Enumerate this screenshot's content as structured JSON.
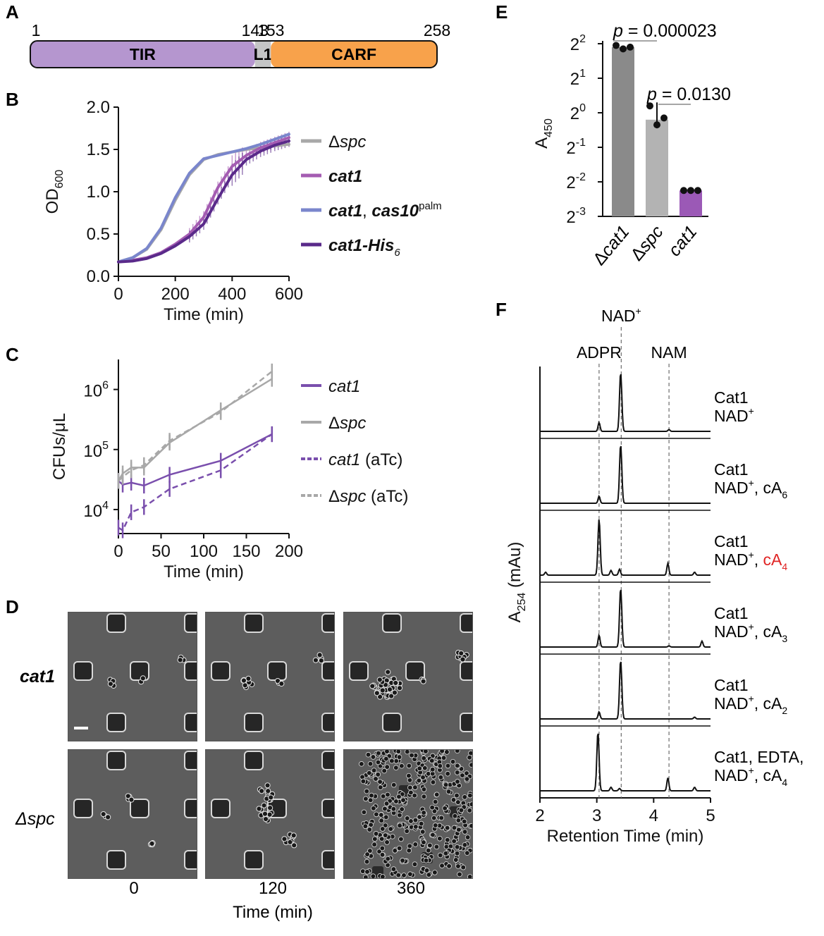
{
  "panels": {
    "A": {
      "letter": "A",
      "domains": [
        {
          "name": "TIR",
          "start": 1,
          "end": 143,
          "color": "#b596cf"
        },
        {
          "name": "L1",
          "start": 143,
          "end": 153,
          "color": "#c4c5c6"
        },
        {
          "name": "CARF",
          "start": 153,
          "end": 258,
          "color": "#f8a24b"
        }
      ],
      "positions": [
        "1",
        "143",
        "153",
        "258"
      ]
    },
    "B": {
      "letter": "B",
      "chart_data": {
        "type": "line",
        "xlabel": "Time (min)",
        "ylabel": "OD",
        "ylabel_sub": "600",
        "xlim": [
          0,
          600
        ],
        "ylim": [
          0,
          2.0
        ],
        "xticks": [
          "0",
          "200",
          "400",
          "600"
        ],
        "yticks": [
          "0.0",
          "0.5",
          "1.0",
          "1.5",
          "2.0"
        ],
        "x": [
          0,
          50,
          100,
          150,
          200,
          250,
          300,
          350,
          400,
          450,
          500,
          550,
          600
        ],
        "series": [
          {
            "name": "Δspc",
            "color": "#a8a8a8",
            "values": [
              0.17,
              0.22,
              0.32,
              0.55,
              0.9,
              1.2,
              1.38,
              1.44,
              1.47,
              1.5,
              1.52,
              1.54,
              1.56
            ]
          },
          {
            "name": "cat1",
            "color": "#a45cb2",
            "values": [
              0.17,
              0.19,
              0.22,
              0.28,
              0.38,
              0.5,
              0.7,
              1.05,
              1.3,
              1.43,
              1.52,
              1.58,
              1.64
            ]
          },
          {
            "name": "cat1, cas10palm",
            "color": "#7a86cc",
            "values": [
              0.17,
              0.22,
              0.33,
              0.57,
              0.93,
              1.22,
              1.39,
              1.43,
              1.47,
              1.51,
              1.56,
              1.62,
              1.68
            ]
          },
          {
            "name": "cat1-His6",
            "color": "#5a2a8a",
            "values": [
              0.17,
              0.18,
              0.21,
              0.27,
              0.36,
              0.47,
              0.62,
              0.92,
              1.2,
              1.38,
              1.48,
              1.55,
              1.6
            ]
          }
        ],
        "legend": [
          {
            "label": "Δspc",
            "color": "#a8a8a8"
          },
          {
            "label": "cat1",
            "color": "#a45cb2"
          },
          {
            "label": "cat1, cas10",
            "sup": "palm",
            "color": "#7a86cc"
          },
          {
            "label": "cat1-His",
            "sub": "6",
            "color": "#5a2a8a"
          }
        ]
      }
    },
    "C": {
      "letter": "C",
      "chart_data": {
        "type": "line",
        "xlabel": "Time (min)",
        "ylabel": "CFUs/μL",
        "xlim": [
          0,
          200
        ],
        "ylim_log10": [
          3.6,
          6.5
        ],
        "xticks": [
          "0",
          "50",
          "100",
          "150",
          "200"
        ],
        "yticks": [
          {
            "base": "10",
            "exp": "4"
          },
          {
            "base": "10",
            "exp": "5"
          },
          {
            "base": "10",
            "exp": "6"
          }
        ],
        "x": [
          0,
          5,
          15,
          30,
          60,
          120,
          180
        ],
        "series": [
          {
            "name": "cat1",
            "color": "#7a4fad",
            "dashed": false,
            "values": [
              30000,
              26000,
              28000,
              25000,
              38000,
              65000,
              180000
            ]
          },
          {
            "name": "Δspc",
            "color": "#a8a8a8",
            "dashed": false,
            "values": [
              30000,
              40000,
              50000,
              50000,
              130000,
              450000,
              1500000
            ]
          },
          {
            "name": "cat1 (aTc)",
            "color": "#7a4fad",
            "dashed": true,
            "values": [
              5000,
              4500,
              9000,
              11000,
              22000,
              45000,
              180000
            ]
          },
          {
            "name": "Δspc (aTc)",
            "color": "#a8a8a8",
            "dashed": true,
            "values": [
              30000,
              35000,
              45000,
              55000,
              140000,
              420000,
              2000000
            ]
          }
        ],
        "legend": [
          {
            "label": "cat1",
            "color": "#7a4fad",
            "dashed": false
          },
          {
            "label": "Δspc",
            "color": "#a8a8a8",
            "dashed": false
          },
          {
            "label": "cat1 (aTc)",
            "color": "#7a4fad",
            "dashed": true
          },
          {
            "label": "Δspc (aTc)",
            "color": "#a8a8a8",
            "dashed": true
          }
        ]
      }
    },
    "D": {
      "letter": "D",
      "rows": [
        "cat1",
        "Δspc"
      ],
      "times": [
        "0",
        "120",
        "360"
      ],
      "xlabel": "Time (min)"
    },
    "E": {
      "letter": "E",
      "chart_data": {
        "type": "bar",
        "ylabel": "A",
        "ylabel_sub": "450",
        "categories": [
          "Δcat1",
          "Δspc",
          "cat1"
        ],
        "values_log2": [
          1.9,
          -0.2,
          -2.25
        ],
        "points_log2": [
          [
            1.95,
            1.85,
            1.9
          ],
          [
            0.2,
            -0.35,
            -0.15
          ],
          [
            -2.25,
            -2.25,
            -2.25
          ]
        ],
        "colors": [
          "#8a8a8a",
          "#b3b3b3",
          "#9b59b6"
        ],
        "ylim_log2": [
          -3,
          2
        ],
        "yticks": [
          {
            "base": "2",
            "exp": "2"
          },
          {
            "base": "2",
            "exp": "1"
          },
          {
            "base": "2",
            "exp": "0"
          },
          {
            "base": "2",
            "exp": "-1"
          },
          {
            "base": "2",
            "exp": "-2"
          },
          {
            "base": "2",
            "exp": "-3"
          }
        ],
        "annotations": [
          {
            "p_label": "p",
            "p_value": " = 0.000023"
          },
          {
            "p_label": "p",
            "p_value": " = 0.0130"
          }
        ]
      }
    },
    "F": {
      "letter": "F",
      "chart_data": {
        "type": "line",
        "xlabel": "Retention Time (min)",
        "ylabel": "A",
        "ylabel_sub": "254",
        "ylabel_unit": " (mAu)",
        "xlim": [
          2,
          5
        ],
        "xticks": [
          "2",
          "3",
          "4",
          "5"
        ],
        "markers": [
          {
            "label": "ADPR",
            "x": 3.04
          },
          {
            "label": "NAD",
            "sup": "+",
            "x": 3.43
          },
          {
            "label": "NAM",
            "x": 4.27
          }
        ],
        "traces": [
          {
            "lines": [
              {
                "t": "Cat1"
              },
              {
                "t": "NAD",
                "sup": "+"
              }
            ],
            "peaks": [
              [
                3.04,
                0.15
              ],
              [
                3.42,
                1.0
              ],
              [
                4.27,
                0.03
              ]
            ]
          },
          {
            "lines": [
              {
                "t": "Cat1"
              },
              {
                "t": "NAD",
                "sup": "+",
                "after": ", cA",
                "sub": "6"
              }
            ],
            "peaks": [
              [
                3.04,
                0.12
              ],
              [
                3.42,
                1.0
              ]
            ]
          },
          {
            "lines": [
              {
                "t": "Cat1"
              },
              {
                "t": "NAD",
                "sup": "+",
                "after": ", ",
                "red": "cA",
                "redsub": "4"
              }
            ],
            "peaks": [
              [
                2.1,
                0.05
              ],
              [
                3.04,
                0.95
              ],
              [
                3.25,
                0.08
              ],
              [
                3.4,
                0.1
              ],
              [
                4.25,
                0.2
              ],
              [
                4.72,
                0.05
              ]
            ]
          },
          {
            "lines": [
              {
                "t": "Cat1"
              },
              {
                "t": "NAD",
                "sup": "+",
                "after": ", cA",
                "sub": "3"
              }
            ],
            "peaks": [
              [
                3.04,
                0.2
              ],
              [
                3.42,
                1.0
              ],
              [
                4.27,
                0.02
              ],
              [
                4.85,
                0.1
              ]
            ]
          },
          {
            "lines": [
              {
                "t": "Cat1"
              },
              {
                "t": "NAD",
                "sup": "+",
                "after": ", cA",
                "sub": "2"
              }
            ],
            "peaks": [
              [
                3.04,
                0.12
              ],
              [
                3.42,
                1.0
              ],
              [
                4.72,
                0.03
              ]
            ]
          },
          {
            "lines": [
              {
                "t": "Cat1, EDTA,"
              },
              {
                "t": "NAD",
                "sup": "+",
                "after": ", cA",
                "sub": "4"
              }
            ],
            "peaks": [
              [
                3.02,
                1.0
              ],
              [
                3.25,
                0.06
              ],
              [
                3.4,
                0.04
              ],
              [
                4.25,
                0.22
              ],
              [
                4.72,
                0.06
              ]
            ]
          }
        ]
      }
    }
  }
}
